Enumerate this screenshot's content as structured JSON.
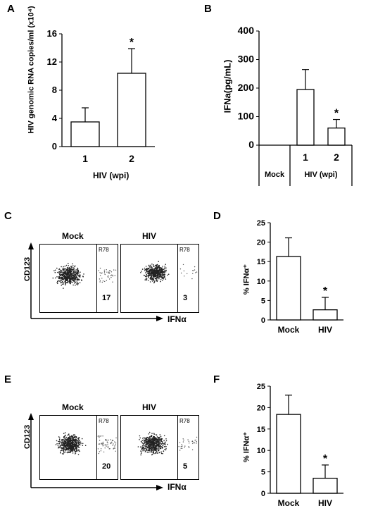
{
  "panels": {
    "A": "A",
    "B": "B",
    "C": "C",
    "D": "D",
    "E": "E",
    "F": "F"
  },
  "chart_data": [
    {
      "id": "A",
      "type": "bar",
      "categories": [
        "1",
        "2"
      ],
      "values": [
        3.5,
        10.4
      ],
      "errors": [
        2.0,
        3.5
      ],
      "significance": [
        "",
        "*"
      ],
      "ylabel": "HIV genomic RNA copies/ml (x10⁴)",
      "xlabel": "HIV (wpi)",
      "ylim": [
        0,
        16
      ],
      "yticks": [
        0,
        4,
        8,
        12,
        16
      ],
      "grid": false
    },
    {
      "id": "B",
      "type": "bar",
      "categories": [
        "Mock",
        "1",
        "2"
      ],
      "values": [
        0,
        195,
        60
      ],
      "errors": [
        0,
        70,
        30
      ],
      "significance": [
        "",
        "",
        "*"
      ],
      "ylabel": "IFNa(pg/mL)",
      "xlabel": "HIV (wpi)",
      "group_label": "Mock",
      "ylim": [
        0,
        400
      ],
      "yticks": [
        0,
        100,
        200,
        300,
        400
      ],
      "grid": false
    },
    {
      "id": "D",
      "type": "bar",
      "categories": [
        "Mock",
        "HIV"
      ],
      "values": [
        16.3,
        2.6
      ],
      "errors": [
        4.8,
        3.2
      ],
      "significance": [
        "",
        "*"
      ],
      "ylabel": "% IFNα⁺",
      "xlabel": "",
      "ylim": [
        0,
        25
      ],
      "yticks": [
        0,
        5,
        10,
        15,
        20,
        25
      ],
      "grid": false
    },
    {
      "id": "F",
      "type": "bar",
      "categories": [
        "Mock",
        "HIV"
      ],
      "values": [
        18.4,
        3.5
      ],
      "errors": [
        4.5,
        3.1
      ],
      "significance": [
        "",
        "*"
      ],
      "ylabel": "% IFNα⁺",
      "xlabel": "",
      "ylim": [
        0,
        25
      ],
      "yticks": [
        0,
        5,
        10,
        15,
        20,
        25
      ],
      "grid": false
    }
  ],
  "flow": {
    "C": {
      "y_axis": "CD123",
      "x_axis": "IFNα",
      "gate": "R78",
      "plots": [
        {
          "name": "Mock",
          "percent": "17"
        },
        {
          "name": "HIV",
          "percent": "3"
        }
      ]
    },
    "E": {
      "y_axis": "CD123",
      "x_axis": "IFNα",
      "gate": "R78",
      "plots": [
        {
          "name": "Mock",
          "percent": "20"
        },
        {
          "name": "HIV",
          "percent": "5"
        }
      ]
    }
  }
}
